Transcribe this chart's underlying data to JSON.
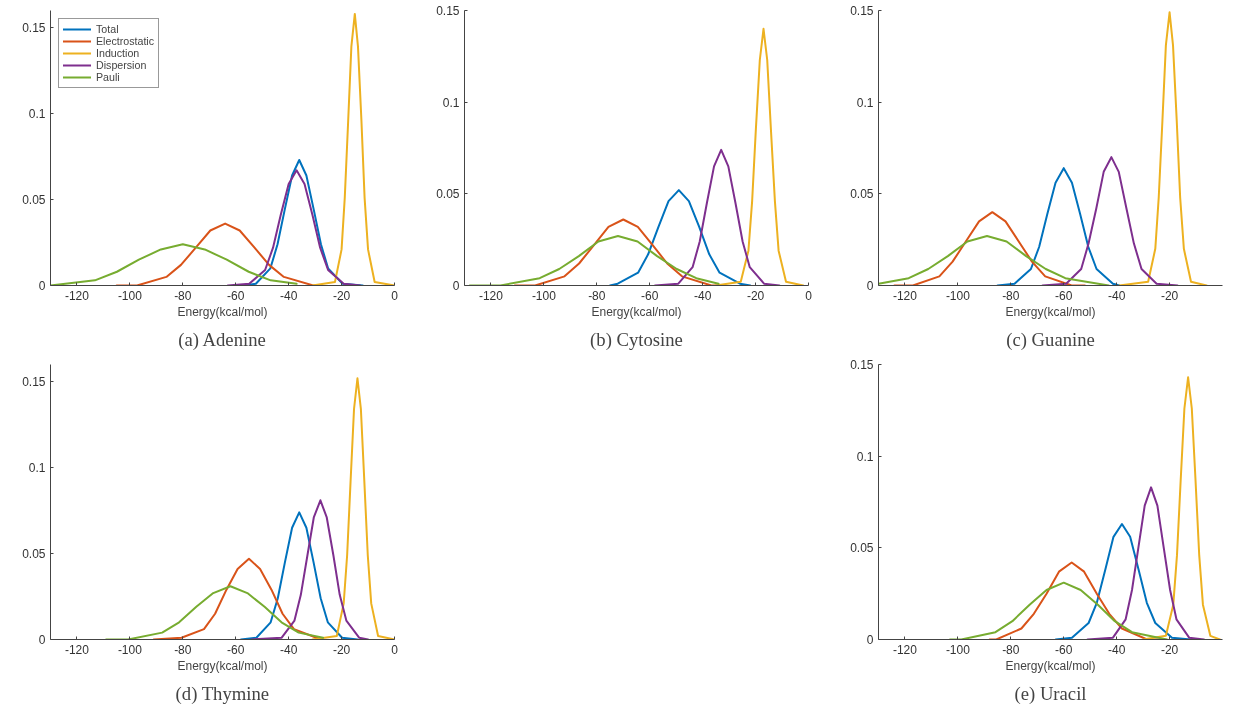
{
  "chart_data": [
    {
      "type": "line",
      "title": "(a) Adenine",
      "xlabel": "Energy(kcal/mol)",
      "xlim": [
        -130,
        0
      ],
      "ylim": [
        0,
        0.16
      ],
      "xticks": [
        -120,
        -100,
        -80,
        -60,
        -40,
        -20,
        0
      ],
      "yticks": [
        0,
        0.05,
        0.1,
        0.15
      ],
      "legend": "top left",
      "series": [
        {
          "name": "Total",
          "color": "#0072bd",
          "x": [
            -57,
            -52.4,
            -46.9,
            -44.2,
            -41.5,
            -38.7,
            -36,
            -33.3,
            -30.5,
            -27.8,
            -25.1,
            -19.6,
            -12
          ],
          "values": [
            0,
            0.001,
            0.01,
            0.024,
            0.044,
            0.064,
            0.073,
            0.064,
            0.044,
            0.024,
            0.01,
            0.001,
            0
          ]
        },
        {
          "name": "Electrostatic",
          "color": "#d95319",
          "x": [
            -105,
            -97.3,
            -86.2,
            -80.7,
            -75.1,
            -69.6,
            -64,
            -58.5,
            -52.9,
            -47.4,
            -41.8,
            -30.7,
            -30
          ],
          "values": [
            0,
            0,
            0.005,
            0.012,
            0.022,
            0.032,
            0.036,
            0.032,
            0.022,
            0.012,
            0.005,
            0,
            0
          ]
        },
        {
          "name": "Induction",
          "color": "#edb120",
          "x": [
            -31,
            -22.5,
            -20,
            -18.8,
            -17.5,
            -16.3,
            -15,
            -13.8,
            -12.5,
            -11.3,
            -10,
            -7.5,
            0
          ],
          "values": [
            0,
            0.002,
            0.021,
            0.051,
            0.096,
            0.139,
            0.158,
            0.139,
            0.096,
            0.051,
            0.021,
            0.002,
            0
          ]
        },
        {
          "name": "Dispersion",
          "color": "#7e2f8e",
          "x": [
            -63,
            -54.9,
            -48.9,
            -45.9,
            -43,
            -40,
            -37,
            -34,
            -31,
            -28.1,
            -25.1,
            -19.2,
            -13
          ],
          "values": [
            0,
            0.001,
            0.009,
            0.022,
            0.041,
            0.059,
            0.067,
            0.059,
            0.041,
            0.022,
            0.009,
            0.001,
            0
          ]
        },
        {
          "name": "Pauli",
          "color": "#77ac30",
          "x": [
            -130,
            -113.2,
            -104.9,
            -96.6,
            -88.3,
            -80,
            -71.7,
            -63.4,
            -55.1,
            -46.8,
            -37
          ],
          "values": [
            0,
            0.003,
            0.008,
            0.015,
            0.021,
            0.024,
            0.021,
            0.015,
            0.008,
            0.003,
            0.001
          ]
        }
      ]
    },
    {
      "type": "line",
      "title": "(b) Cytosine",
      "xlabel": "Energy(kcal/mol)",
      "xlim": [
        -130,
        0
      ],
      "ylim": [
        0,
        0.15
      ],
      "xticks": [
        -120,
        -100,
        -80,
        -60,
        -40,
        -20,
        0
      ],
      "yticks": [
        0,
        0.05,
        0.1,
        0.15
      ],
      "series": [
        {
          "color": "#0072bd",
          "x": [
            -75,
            -72.1,
            -64.4,
            -60.6,
            -56.7,
            -52.9,
            -49,
            -45.2,
            -41.3,
            -37.5,
            -33.6,
            -25.9,
            -22
          ],
          "values": [
            0,
            0.001,
            0.007,
            0.017,
            0.032,
            0.046,
            0.052,
            0.046,
            0.032,
            0.017,
            0.007,
            0.001,
            0
          ]
        },
        {
          "color": "#d95319",
          "x": [
            -111,
            -103.3,
            -92.2,
            -86.7,
            -81.1,
            -75.6,
            -70,
            -64.5,
            -58.9,
            -53.4,
            -47.8,
            -36.7,
            -34
          ],
          "values": [
            0,
            0,
            0.005,
            0.012,
            0.022,
            0.032,
            0.036,
            0.032,
            0.022,
            0.012,
            0.005,
            0,
            0
          ]
        },
        {
          "color": "#edb120",
          "x": [
            -35,
            -25.6,
            -22.7,
            -21.3,
            -19.9,
            -18.4,
            -17,
            -15.6,
            -14.2,
            -12.7,
            -11.3,
            -8.5,
            -2
          ],
          "values": [
            0,
            0.002,
            0.019,
            0.046,
            0.085,
            0.123,
            0.14,
            0.123,
            0.085,
            0.046,
            0.019,
            0.002,
            0
          ]
        },
        {
          "color": "#7e2f8e",
          "x": [
            -58,
            -49.2,
            -43.8,
            -41.1,
            -38.4,
            -35.7,
            -33,
            -30.3,
            -27.6,
            -24.9,
            -22.2,
            -16.8,
            -11
          ],
          "values": [
            0,
            0.001,
            0.01,
            0.024,
            0.045,
            0.065,
            0.074,
            0.065,
            0.045,
            0.024,
            0.01,
            0.001,
            0
          ]
        },
        {
          "color": "#77ac30",
          "x": [
            -128,
            -116.4,
            -101.6,
            -94.2,
            -86.8,
            -79.4,
            -72,
            -64.6,
            -57.2,
            -49.8,
            -42.4,
            -34
          ],
          "values": [
            0,
            0,
            0.004,
            0.009,
            0.016,
            0.024,
            0.027,
            0.024,
            0.016,
            0.009,
            0.004,
            0.001
          ]
        }
      ]
    },
    {
      "type": "line",
      "title": "(c) Guanine",
      "xlabel": "Energy(kcal/mol)",
      "xlim": [
        -130,
        0
      ],
      "ylim": [
        0,
        0.15
      ],
      "xticks": [
        -120,
        -100,
        -80,
        -60,
        -40,
        -20
      ],
      "yticks": [
        0,
        0.05,
        0.1,
        0.15
      ],
      "series": [
        {
          "color": "#0072bd",
          "x": [
            -85,
            -78.6,
            -72.4,
            -69.3,
            -66.2,
            -63.1,
            -60,
            -56.9,
            -53.8,
            -50.7,
            -47.6,
            -41.4,
            -39
          ],
          "values": [
            0,
            0.001,
            0.009,
            0.021,
            0.039,
            0.056,
            0.064,
            0.056,
            0.039,
            0.021,
            0.009,
            0.001,
            0
          ]
        },
        {
          "color": "#d95319",
          "x": [
            -124,
            -117,
            -107,
            -102,
            -97,
            -92,
            -87,
            -82,
            -77,
            -72,
            -67,
            -57,
            -52
          ],
          "values": [
            0,
            0,
            0.005,
            0.013,
            0.024,
            0.035,
            0.04,
            0.035,
            0.024,
            0.013,
            0.005,
            0,
            0
          ]
        },
        {
          "color": "#edb120",
          "x": [
            -39,
            -28.1,
            -25.4,
            -24.1,
            -22.7,
            -21.4,
            -20,
            -18.7,
            -17.3,
            -16,
            -14.6,
            -11.9,
            -6
          ],
          "values": [
            0,
            0.002,
            0.02,
            0.048,
            0.09,
            0.131,
            0.149,
            0.131,
            0.09,
            0.048,
            0.02,
            0.002,
            0
          ]
        },
        {
          "color": "#7e2f8e",
          "x": [
            -68,
            -59.1,
            -53.4,
            -50.6,
            -47.7,
            -44.9,
            -42,
            -39.2,
            -36.3,
            -33.5,
            -30.6,
            -24.9,
            -17
          ],
          "values": [
            0,
            0.001,
            0.009,
            0.023,
            0.042,
            0.062,
            0.07,
            0.062,
            0.042,
            0.023,
            0.009,
            0.001,
            0
          ]
        },
        {
          "color": "#77ac30",
          "x": [
            -130,
            -118.6,
            -111.2,
            -103.8,
            -96.4,
            -89,
            -81.6,
            -74.2,
            -66.8,
            -59.4,
            -43
          ],
          "values": [
            0.001,
            0.004,
            0.009,
            0.016,
            0.024,
            0.027,
            0.024,
            0.016,
            0.009,
            0.004,
            0
          ]
        }
      ]
    },
    {
      "type": "line",
      "title": "(d) Thymine",
      "xlabel": "Energy(kcal/mol)",
      "xlim": [
        -130,
        0
      ],
      "ylim": [
        0,
        0.16
      ],
      "xticks": [
        -120,
        -100,
        -80,
        -60,
        -40,
        -20,
        0
      ],
      "yticks": [
        0,
        0.05,
        0.1,
        0.15
      ],
      "series": [
        {
          "color": "#0072bd",
          "x": [
            -58,
            -52.2,
            -46.8,
            -44.1,
            -41.4,
            -38.7,
            -36,
            -33.3,
            -30.6,
            -27.9,
            -25.2,
            -19.8,
            -14
          ],
          "values": [
            0,
            0.001,
            0.01,
            0.024,
            0.045,
            0.065,
            0.074,
            0.065,
            0.045,
            0.024,
            0.01,
            0.001,
            0
          ]
        },
        {
          "color": "#d95319",
          "x": [
            -91,
            -80.5,
            -72,
            -67.8,
            -63.5,
            -59.3,
            -55,
            -50.8,
            -46.5,
            -42.3,
            -38,
            -29.5,
            -27
          ],
          "values": [
            0,
            0.001,
            0.006,
            0.015,
            0.029,
            0.041,
            0.047,
            0.041,
            0.029,
            0.015,
            0.006,
            0.001,
            0
          ]
        },
        {
          "color": "#edb120",
          "x": [
            -31,
            -21.8,
            -19.2,
            -17.9,
            -16.6,
            -15.3,
            -14,
            -12.7,
            -11.4,
            -10.1,
            -8.8,
            -6.2,
            0
          ],
          "values": [
            0,
            0.002,
            0.021,
            0.049,
            0.092,
            0.134,
            0.152,
            0.134,
            0.092,
            0.049,
            0.021,
            0.002,
            0
          ]
        },
        {
          "color": "#7e2f8e",
          "x": [
            -54,
            -42.7,
            -37.8,
            -35.4,
            -32.9,
            -30.5,
            -28,
            -25.6,
            -23.1,
            -20.7,
            -18.2,
            -13.3,
            -10
          ],
          "values": [
            0,
            0.001,
            0.011,
            0.026,
            0.049,
            0.071,
            0.081,
            0.071,
            0.049,
            0.026,
            0.011,
            0.001,
            0
          ]
        },
        {
          "color": "#77ac30",
          "x": [
            -109,
            -100.7,
            -87.8,
            -81.4,
            -74.9,
            -68.5,
            -62,
            -55.6,
            -49.1,
            -42.7,
            -36.2,
            -27
          ],
          "values": [
            0,
            0,
            0.004,
            0.01,
            0.019,
            0.027,
            0.031,
            0.027,
            0.019,
            0.01,
            0.004,
            0.001
          ]
        }
      ]
    },
    {
      "type": "line",
      "title": "(e) Uracil",
      "xlabel": "Energy(kcal/mol)",
      "xlim": [
        -130,
        0
      ],
      "ylim": [
        0,
        0.15
      ],
      "xticks": [
        -120,
        -100,
        -80,
        -60,
        -40,
        -20
      ],
      "yticks": [
        0,
        0.05,
        0.1,
        0.15
      ],
      "series": [
        {
          "color": "#0072bd",
          "x": [
            -63,
            -56.9,
            -50.6,
            -47.5,
            -44.3,
            -41.2,
            -38,
            -34.9,
            -31.7,
            -28.6,
            -25.4,
            -19.1,
            -12
          ],
          "values": [
            0,
            0.001,
            0.009,
            0.02,
            0.038,
            0.056,
            0.063,
            0.056,
            0.038,
            0.02,
            0.009,
            0.001,
            0
          ]
        },
        {
          "color": "#d95319",
          "x": [
            -88,
            -85.5,
            -76,
            -71.3,
            -66.5,
            -61.8,
            -57,
            -52.3,
            -47.5,
            -42.8,
            -38,
            -28.5,
            -22
          ],
          "values": [
            0,
            0,
            0.006,
            0.014,
            0.025,
            0.037,
            0.042,
            0.037,
            0.025,
            0.014,
            0.006,
            0,
            0
          ]
        },
        {
          "color": "#edb120",
          "x": [
            -30,
            -21.4,
            -18.6,
            -17.2,
            -15.8,
            -14.4,
            -13,
            -11.6,
            -10.2,
            -8.8,
            -7.4,
            -4.6,
            -1
          ],
          "values": [
            0,
            0.002,
            0.019,
            0.046,
            0.087,
            0.126,
            0.143,
            0.126,
            0.087,
            0.046,
            0.019,
            0.002,
            0
          ]
        },
        {
          "color": "#7e2f8e",
          "x": [
            -51,
            -41.4,
            -36.6,
            -34.2,
            -31.8,
            -29.4,
            -27,
            -24.6,
            -22.2,
            -19.8,
            -17.4,
            -12.6,
            -7
          ],
          "values": [
            0,
            0.001,
            0.011,
            0.027,
            0.05,
            0.073,
            0.083,
            0.073,
            0.05,
            0.027,
            0.011,
            0.001,
            0
          ]
        },
        {
          "color": "#77ac30",
          "x": [
            -103,
            -98.7,
            -85.8,
            -79.4,
            -72.9,
            -66.5,
            -60,
            -53.6,
            -47.1,
            -40.7,
            -34.2,
            -21
          ],
          "values": [
            0,
            0,
            0.004,
            0.01,
            0.019,
            0.027,
            0.031,
            0.027,
            0.019,
            0.01,
            0.004,
            0
          ]
        }
      ]
    }
  ]
}
